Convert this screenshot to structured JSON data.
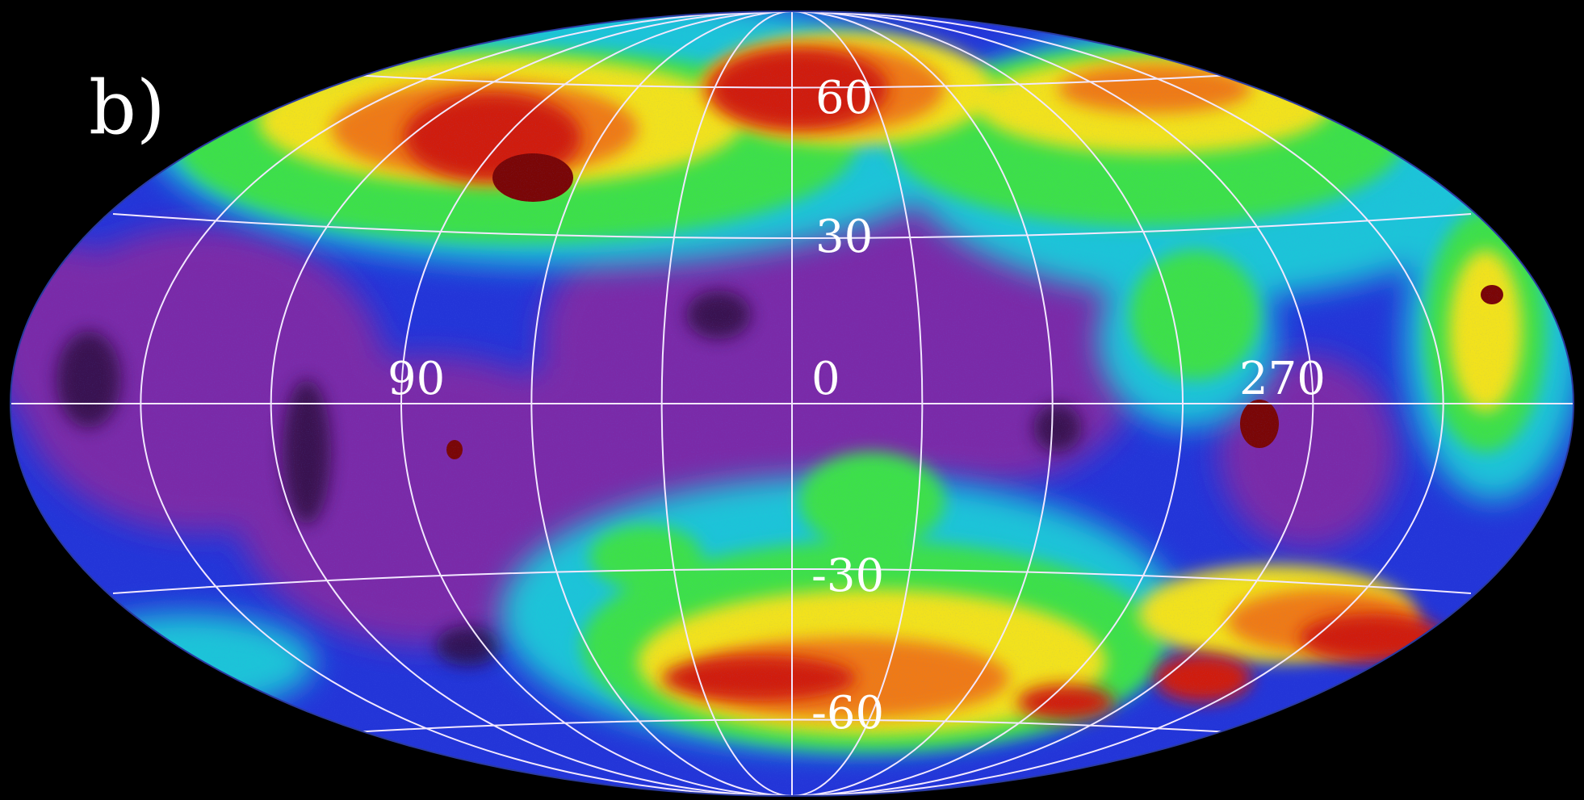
{
  "panel_label": "b)",
  "projection": "Aitoff/Hammer all-sky (ellipse)",
  "colormap": [
    "#1a0b2e",
    "#7a2aa8",
    "#1f3fe0",
    "#1ec4d8",
    "#3ee04a",
    "#f2e21e",
    "#ef7a12",
    "#d01e0e",
    "#7a0606"
  ],
  "grid": {
    "latitude_labels": [
      "60",
      "30",
      "0",
      "-30",
      "-60"
    ],
    "longitude_labels": [
      "90",
      "270"
    ]
  },
  "colors": {
    "background": "#000000",
    "gridline": "#f2e8ff",
    "label": "#ffffff"
  }
}
